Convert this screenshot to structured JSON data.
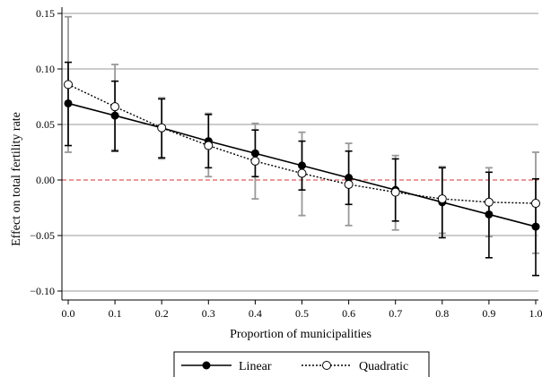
{
  "chart_data": {
    "type": "line",
    "title": "",
    "xlabel": "Proportion of municipalities",
    "ylabel": "Effect on total fertility rate",
    "xlim": [
      -0.01,
      1.0
    ],
    "ylim": [
      -0.105,
      0.155
    ],
    "x_ticks": [
      "0.0",
      "0.1",
      "0.2",
      "0.3",
      "0.4",
      "0.5",
      "0.6",
      "0.7",
      "0.8",
      "0.9",
      "1.0"
    ],
    "y_ticks": [
      "0.15",
      "0.10",
      "0.05",
      "0.00",
      "−0.05",
      "−0.10"
    ],
    "grid": "horizontal",
    "reference_line": {
      "y": 0.0,
      "color": "#e05a5a",
      "style": "dashed"
    },
    "legend_position": "bottom",
    "x": [
      0.0,
      0.1,
      0.2,
      0.3,
      0.4,
      0.5,
      0.6,
      0.7,
      0.8,
      0.9,
      1.0
    ],
    "series": [
      {
        "name": "Linear",
        "marker": "filled-circle",
        "line": "solid",
        "values": [
          0.069,
          0.058,
          0.047,
          0.035,
          0.024,
          0.013,
          0.002,
          -0.009,
          -0.02,
          -0.031,
          -0.042
        ],
        "ci_low": [
          0.031,
          0.026,
          0.02,
          0.011,
          0.003,
          -0.009,
          -0.022,
          -0.037,
          -0.052,
          -0.07,
          -0.086
        ],
        "ci_high": [
          0.106,
          0.089,
          0.073,
          0.059,
          0.045,
          0.035,
          0.026,
          0.019,
          0.011,
          0.007,
          0.001
        ],
        "ci_color": "#000000"
      },
      {
        "name": "Quadratic",
        "marker": "hollow-circle",
        "line": "dotted",
        "values": [
          0.086,
          0.066,
          0.047,
          0.031,
          0.017,
          0.006,
          -0.004,
          -0.011,
          -0.017,
          -0.02,
          -0.021
        ],
        "ci_low": [
          0.025,
          0.027,
          0.019,
          0.003,
          -0.017,
          -0.032,
          -0.041,
          -0.045,
          -0.048,
          -0.051,
          -0.066
        ],
        "ci_high": [
          0.147,
          0.104,
          0.074,
          0.06,
          0.051,
          0.043,
          0.033,
          0.022,
          0.012,
          0.011,
          0.025
        ],
        "ci_color": "#999999"
      }
    ]
  }
}
